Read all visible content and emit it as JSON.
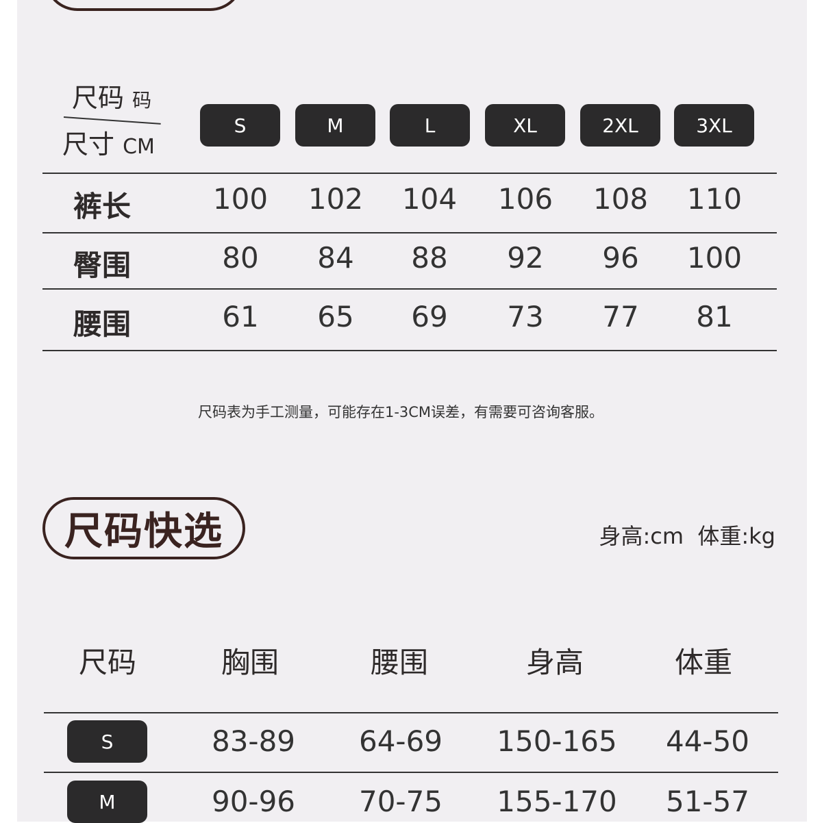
{
  "table1": {
    "corner_top": "尺码",
    "corner_top_small": "码",
    "corner_bottom": "尺寸",
    "corner_bottom_small": "CM",
    "sizes": [
      "S",
      "M",
      "L",
      "XL",
      "2XL",
      "3XL"
    ],
    "rows": [
      {
        "label": "裤长",
        "values": [
          "100",
          "102",
          "104",
          "106",
          "108",
          "110"
        ]
      },
      {
        "label": "臀围",
        "values": [
          "80",
          "84",
          "88",
          "92",
          "96",
          "100"
        ]
      },
      {
        "label": "腰围",
        "values": [
          "61",
          "65",
          "69",
          "73",
          "77",
          "81"
        ]
      }
    ],
    "note": "尺码表为手工测量，可能存在1-3CM误差，有需要可咨询客服。"
  },
  "section2": {
    "title": "尺码快选",
    "units": "身高:cm  体重:kg",
    "headers": [
      "尺码",
      "胸围",
      "腰围",
      "身高",
      "体重"
    ],
    "rows": [
      {
        "size": "S",
        "values": [
          "83-89",
          "64-69",
          "150-165",
          "44-50"
        ]
      },
      {
        "size": "M",
        "values": [
          "90-96",
          "70-75",
          "155-170",
          "51-57"
        ]
      }
    ]
  },
  "colors": {
    "background": "#f1eff2",
    "pill": "#2b2a2b",
    "title_border": "#3a2320"
  }
}
